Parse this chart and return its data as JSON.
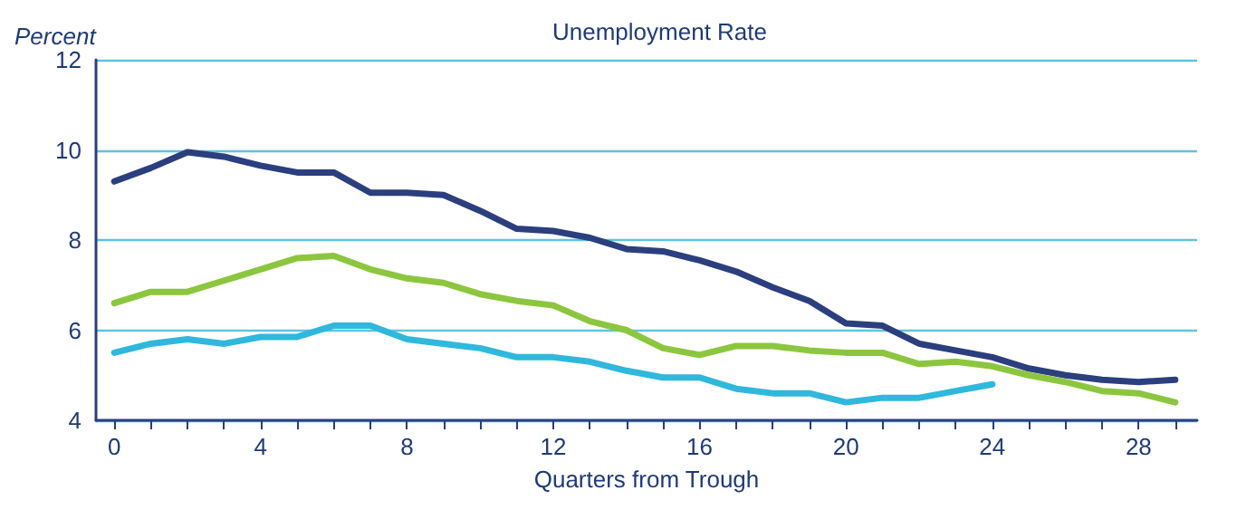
{
  "chart_data": {
    "type": "line",
    "title": "Unemployment Rate",
    "ylabel": "Percent",
    "xlabel": "Quarters from Trough",
    "x": [
      0,
      1,
      2,
      3,
      4,
      5,
      6,
      7,
      8,
      9,
      10,
      11,
      12,
      13,
      14,
      15,
      16,
      17,
      18,
      19,
      20,
      21,
      22,
      23,
      24,
      25,
      26,
      27,
      28,
      29
    ],
    "series": [
      {
        "color": "#2b3f7e",
        "values": [
          9.3,
          9.6,
          9.95,
          9.85,
          9.65,
          9.5,
          9.5,
          9.05,
          9.05,
          9.0,
          8.65,
          8.25,
          8.2,
          8.05,
          7.8,
          7.75,
          7.55,
          7.3,
          6.95,
          6.65,
          6.15,
          6.1,
          5.7,
          5.55,
          5.4,
          5.15,
          5.0,
          4.9,
          4.85,
          4.9
        ]
      },
      {
        "color": "#8cc63f",
        "values": [
          6.6,
          6.85,
          6.85,
          7.1,
          7.35,
          7.6,
          7.65,
          7.35,
          7.15,
          7.05,
          6.8,
          6.65,
          6.55,
          6.2,
          6.0,
          5.6,
          5.45,
          5.65,
          5.65,
          5.55,
          5.5,
          5.5,
          5.25,
          5.3,
          5.2,
          5.0,
          4.85,
          4.65,
          4.6,
          4.4
        ]
      },
      {
        "color": "#2fb8dc",
        "values": [
          5.5,
          5.7,
          5.8,
          5.7,
          5.85,
          5.85,
          6.1,
          6.1,
          5.8,
          5.7,
          5.6,
          5.4,
          5.4,
          5.3,
          5.1,
          4.95,
          4.95,
          4.7,
          4.6,
          4.6,
          4.4,
          4.5,
          4.5,
          4.65,
          4.8,
          null,
          null,
          null,
          null,
          null
        ]
      }
    ],
    "xlim": [
      -0.5,
      29.6
    ],
    "xticks": [
      0,
      {
        "value": 1,
        "label": null
      },
      {
        "value": 2,
        "label": null
      },
      {
        "value": 3,
        "label": null
      },
      4,
      {
        "value": 5,
        "label": null
      },
      {
        "value": 6,
        "label": null
      },
      {
        "value": 7,
        "label": null
      },
      8,
      {
        "value": 9,
        "label": null
      },
      {
        "value": 10,
        "label": null
      },
      {
        "value": 11,
        "label": null
      },
      12,
      {
        "value": 13,
        "label": null
      },
      {
        "value": 14,
        "label": null
      },
      {
        "value": 15,
        "label": null
      },
      16,
      {
        "value": 17,
        "label": null
      },
      {
        "value": 18,
        "label": null
      },
      {
        "value": 19,
        "label": null
      },
      20,
      {
        "value": 21,
        "label": null
      },
      {
        "value": 22,
        "label": null
      },
      {
        "value": 23,
        "label": null
      },
      24,
      {
        "value": 25,
        "label": null
      },
      {
        "value": 26,
        "label": null
      },
      {
        "value": 27,
        "label": null
      },
      28,
      {
        "value": 29,
        "label": null
      }
    ],
    "ylim": [
      4,
      12
    ],
    "yticks": [
      4,
      6,
      8,
      10,
      12
    ],
    "grid": "y",
    "marker": "none",
    "line_style": "solid"
  }
}
